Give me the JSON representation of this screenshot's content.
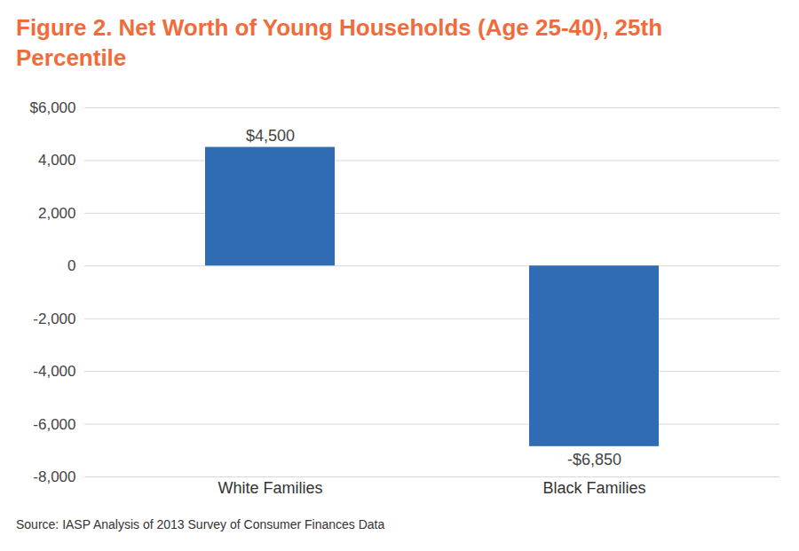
{
  "chart_data": {
    "type": "bar",
    "title": "Figure 2. Net Worth of Young Households (Age 25-40), 25th Percentile",
    "caption": "Source: IASP Analysis of 2013 Survey of Consumer Finances Data",
    "categories": [
      "White Families",
      "Black Families"
    ],
    "values": [
      4500,
      -6850
    ],
    "value_labels": [
      "$4,500",
      "-$6,850"
    ],
    "color": "#2f6cb3",
    "ylim": [
      -8000,
      6000
    ],
    "yticks": [
      {
        "value": 6000,
        "label": "$6,000"
      },
      {
        "value": 4000,
        "label": "4,000"
      },
      {
        "value": 2000,
        "label": "2,000"
      },
      0,
      {
        "value": -2000,
        "label": "-2,000"
      },
      {
        "value": -4000,
        "label": "-4,000"
      },
      {
        "value": -6000,
        "label": "-6,000"
      },
      {
        "value": -8000,
        "label": "-8,000"
      }
    ],
    "grid": true,
    "data_labels": true
  }
}
